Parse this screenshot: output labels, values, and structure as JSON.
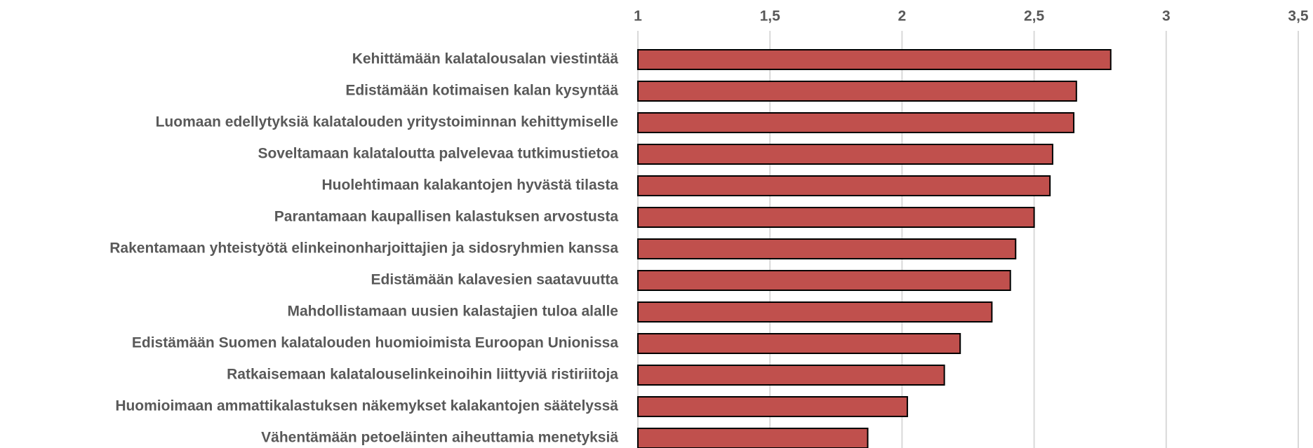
{
  "chart_data": {
    "type": "barh",
    "categories": [
      "Kehittämään kalatalousalan viestintää",
      "Edistämään kotimaisen kalan kysyntää",
      "Luomaan edellytyksiä kalatalouden yritystoiminnan kehittymiselle",
      "Soveltamaan kalataloutta palvelevaa tutkimustietoa",
      "Huolehtimaan kalakantojen hyvästä tilasta",
      "Parantamaan kaupallisen kalastuksen arvostusta",
      "Rakentamaan yhteistyötä elinkeinonharjoittajien ja sidosryhmien kanssa",
      "Edistämään kalavesien saatavuutta",
      "Mahdollistamaan uusien kalastajien tuloa alalle",
      "Edistämään Suomen kalatalouden huomioimista Euroopan Unionissa",
      "Ratkaisemaan kalatalouselinkeinoihin liittyviä ristiriitoja",
      "Huomioimaan ammattikalastuksen näkemykset kalakantojen säätelyssä",
      "Vähentämään petoeläinten aiheuttamia menetyksiä"
    ],
    "values": [
      2.79,
      2.66,
      2.65,
      2.57,
      2.56,
      2.5,
      2.43,
      2.41,
      2.34,
      2.22,
      2.16,
      2.02,
      1.87
    ],
    "color": "#c0504d",
    "xlim": [
      1,
      3.5
    ],
    "xticks": [
      1,
      {
        "value": 1.5,
        "label": "1,5"
      },
      2,
      {
        "value": 2.5,
        "label": "2,5"
      },
      3,
      {
        "value": 3.5,
        "label": "3,5"
      }
    ],
    "grid": true
  }
}
